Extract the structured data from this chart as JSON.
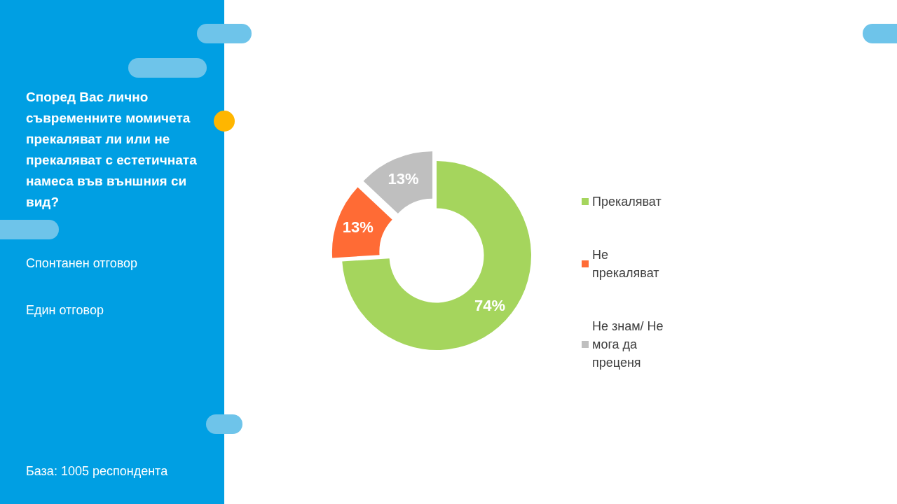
{
  "chart_data": {
    "type": "donut",
    "title": "Според Вас лично съвременните момичета прекаляват ли или не прекаляват с естетичната намеса във външния си вид?",
    "subtitle": "Спонтанен отговор",
    "annotations": [
      "Един отговор",
      "База:  1005 респондента"
    ],
    "categories": [
      "Прекаляват",
      "Не прекаляват",
      "Не знам/ Не мога да преценя"
    ],
    "values": [
      74,
      13,
      13
    ],
    "value_labels": [
      "74%",
      "13%",
      "13%"
    ],
    "colors": [
      "#a5d55d",
      "#ff6b35",
      "#bfbfbf"
    ],
    "legend": "right"
  }
}
